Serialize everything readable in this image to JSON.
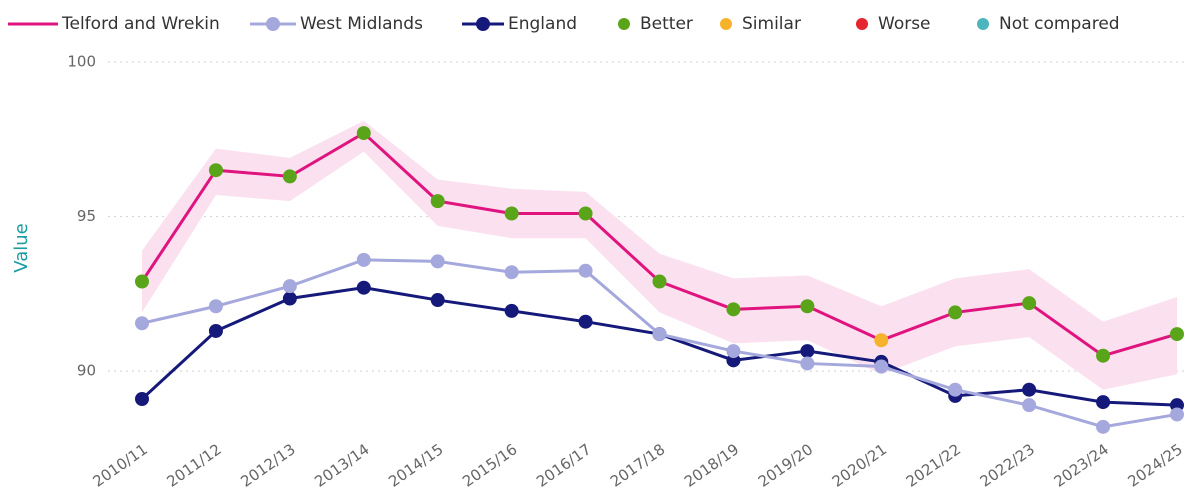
{
  "chart_data": {
    "type": "line",
    "y_label": "Value",
    "categories": [
      "2010/11",
      "2011/12",
      "2012/13",
      "2013/14",
      "2014/15",
      "2015/16",
      "2016/17",
      "2017/18",
      "2018/19",
      "2019/20",
      "2020/21",
      "2021/22",
      "2022/23",
      "2023/24",
      "2024/25"
    ],
    "ylim": [
      88,
      100
    ],
    "yticks": [
      90,
      95,
      100
    ],
    "grid": true,
    "series": [
      {
        "name": "Telford and Wrekin",
        "color": "#e0147f",
        "values": [
          92.9,
          96.5,
          96.3,
          97.7,
          95.5,
          95.1,
          95.1,
          92.9,
          92.0,
          92.1,
          91.0,
          91.9,
          92.2,
          90.5,
          91.2
        ],
        "marker_colors": [
          "#5aa419",
          "#5aa419",
          "#5aa419",
          "#5aa419",
          "#5aa419",
          "#5aa419",
          "#5aa419",
          "#5aa419",
          "#5aa419",
          "#5aa419",
          "#f7b22c",
          "#5aa419",
          "#5aa419",
          "#5aa419",
          "#5aa419"
        ],
        "ci_upper": [
          93.9,
          97.2,
          96.9,
          98.1,
          96.2,
          95.9,
          95.8,
          93.8,
          93.0,
          93.1,
          92.1,
          93.0,
          93.3,
          91.6,
          92.4
        ],
        "ci_lower": [
          91.9,
          95.7,
          95.5,
          97.1,
          94.7,
          94.3,
          94.3,
          91.9,
          90.9,
          91.0,
          89.9,
          90.8,
          91.1,
          89.4,
          89.9
        ],
        "ci_color": "#fbe1f0"
      },
      {
        "name": "West Midlands",
        "color": "#a5a8dc",
        "values": [
          91.55,
          92.1,
          92.75,
          93.6,
          93.55,
          93.2,
          93.25,
          91.2,
          90.65,
          90.25,
          90.15,
          89.4,
          88.9,
          88.2,
          88.6
        ]
      },
      {
        "name": "England",
        "color": "#15197a",
        "values": [
          89.1,
          91.3,
          92.35,
          92.7,
          92.3,
          91.95,
          91.6,
          91.2,
          90.35,
          90.65,
          90.3,
          89.2,
          89.4,
          89.0,
          88.9
        ]
      }
    ],
    "comparison_legend": [
      {
        "name": "Better",
        "color": "#5aa419"
      },
      {
        "name": "Similar",
        "color": "#f7b22c"
      },
      {
        "name": "Worse",
        "color": "#e5252f"
      },
      {
        "name": "Not compared",
        "color": "#4cb5bd"
      }
    ]
  }
}
